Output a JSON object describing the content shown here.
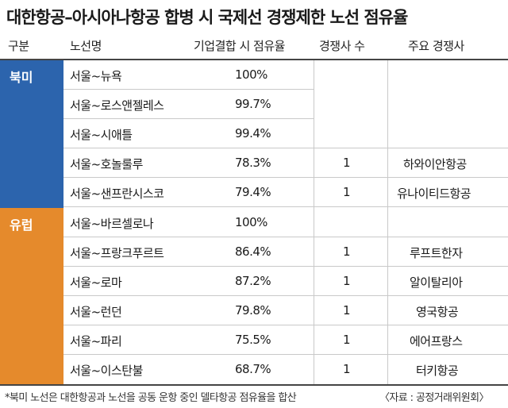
{
  "title": "대한항공–아시아나항공 합병 시 국제선 경쟁제한 노선 점유율",
  "header": {
    "col_region": "구분",
    "col_route": "노선명",
    "col_share": "기업결합 시 점유율",
    "col_competitors": "경쟁사 수",
    "col_rivals": "주요 경쟁사"
  },
  "regions": {
    "north_america": "북미",
    "europe": "유럽"
  },
  "rows": [
    {
      "route": "서울~뉴욕",
      "share": "100%",
      "competitors": "",
      "rival": ""
    },
    {
      "route": "서울~로스앤젤레스",
      "share": "99.7%",
      "competitors": "",
      "rival": ""
    },
    {
      "route": "서울~시애틀",
      "share": "99.4%",
      "competitors": "",
      "rival": ""
    },
    {
      "route": "서울~호놀룰루",
      "share": "78.3%",
      "competitors": "1",
      "rival": "하와이안항공"
    },
    {
      "route": "서울~샌프란시스코",
      "share": "79.4%",
      "competitors": "1",
      "rival": "유나이티드항공"
    },
    {
      "route": "서울~바르셀로나",
      "share": "100%",
      "competitors": "",
      "rival": ""
    },
    {
      "route": "서울~프랑크푸르트",
      "share": "86.4%",
      "competitors": "1",
      "rival": "루프트한자"
    },
    {
      "route": "서울~로마",
      "share": "87.2%",
      "competitors": "1",
      "rival": "알이탈리아"
    },
    {
      "route": "서울~런던",
      "share": "79.8%",
      "competitors": "1",
      "rival": "영국항공"
    },
    {
      "route": "서울~파리",
      "share": "75.5%",
      "competitors": "1",
      "rival": "에어프랑스"
    },
    {
      "route": "서울~이스탄불",
      "share": "68.7%",
      "competitors": "1",
      "rival": "터키항공"
    }
  ],
  "footer": {
    "note": "*북미 노선은 대한항공과 노선을 공동 운항 중인 델타항공 점유율을 합산",
    "source": "〈자료 : 공정거래위원회〉"
  },
  "colors": {
    "north_america": "#2c64ad",
    "europe": "#e58a2c"
  }
}
